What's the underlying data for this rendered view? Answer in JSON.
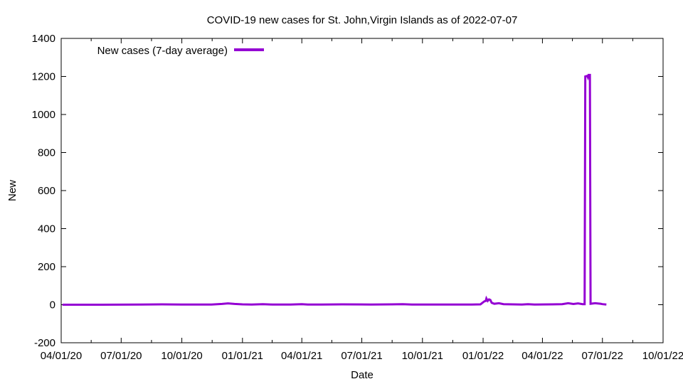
{
  "chart_data": {
    "type": "line",
    "title": "COVID-19 new cases for St. John,Virgin Islands as of 2022-07-07",
    "xlabel": "Date",
    "ylabel": "New",
    "xlim": [
      "2020-04-01",
      "2022-10-01"
    ],
    "ylim": [
      -200,
      1400
    ],
    "y_ticks": [
      -200,
      0,
      200,
      400,
      600,
      800,
      1000,
      1200,
      1400
    ],
    "x_ticks": [
      {
        "date": "2020-04-01",
        "label": "04/01/20"
      },
      {
        "date": "2020-07-01",
        "label": "07/01/20"
      },
      {
        "date": "2020-10-01",
        "label": "10/01/20"
      },
      {
        "date": "2021-01-01",
        "label": "01/01/21"
      },
      {
        "date": "2021-04-01",
        "label": "04/01/21"
      },
      {
        "date": "2021-07-01",
        "label": "07/01/21"
      },
      {
        "date": "2021-10-01",
        "label": "10/01/21"
      },
      {
        "date": "2022-01-01",
        "label": "01/01/22"
      },
      {
        "date": "2022-04-01",
        "label": "04/01/22"
      },
      {
        "date": "2022-07-01",
        "label": "07/01/22"
      },
      {
        "date": "2022-10-01",
        "label": "10/01/22"
      }
    ],
    "grid": false,
    "legend_position": "top-left",
    "series": [
      {
        "name": "New cases (7-day average)",
        "color": "#9400d3",
        "points": [
          [
            "2020-04-03",
            0
          ],
          [
            "2020-06-01",
            0
          ],
          [
            "2020-08-01",
            1
          ],
          [
            "2020-09-01",
            2
          ],
          [
            "2020-10-01",
            1
          ],
          [
            "2020-11-15",
            1
          ],
          [
            "2020-12-01",
            4
          ],
          [
            "2020-12-10",
            7
          ],
          [
            "2020-12-20",
            4
          ],
          [
            "2021-01-01",
            2
          ],
          [
            "2021-01-15",
            1
          ],
          [
            "2021-02-01",
            3
          ],
          [
            "2021-02-15",
            1
          ],
          [
            "2021-03-15",
            1
          ],
          [
            "2021-04-01",
            3
          ],
          [
            "2021-04-10",
            1
          ],
          [
            "2021-05-01",
            1
          ],
          [
            "2021-06-01",
            2
          ],
          [
            "2021-07-15",
            1
          ],
          [
            "2021-08-15",
            2
          ],
          [
            "2021-09-01",
            3
          ],
          [
            "2021-09-15",
            1
          ],
          [
            "2021-10-15",
            1
          ],
          [
            "2021-12-15",
            1
          ],
          [
            "2021-12-28",
            2
          ],
          [
            "2021-12-31",
            10
          ],
          [
            "2022-01-03",
            18
          ],
          [
            "2022-01-05",
            20
          ],
          [
            "2022-01-06",
            33
          ],
          [
            "2022-01-08",
            20
          ],
          [
            "2022-01-10",
            28
          ],
          [
            "2022-01-12",
            25
          ],
          [
            "2022-01-14",
            10
          ],
          [
            "2022-01-18",
            5
          ],
          [
            "2022-01-25",
            8
          ],
          [
            "2022-02-01",
            3
          ],
          [
            "2022-02-15",
            2
          ],
          [
            "2022-03-01",
            1
          ],
          [
            "2022-03-10",
            3
          ],
          [
            "2022-03-20",
            1
          ],
          [
            "2022-04-15",
            2
          ],
          [
            "2022-05-01",
            3
          ],
          [
            "2022-05-10",
            8
          ],
          [
            "2022-05-18",
            4
          ],
          [
            "2022-05-25",
            7
          ],
          [
            "2022-06-01",
            3
          ],
          [
            "2022-06-04",
            3
          ],
          [
            "2022-06-05",
            1200
          ],
          [
            "2022-06-08",
            1203
          ],
          [
            "2022-06-09",
            1195
          ],
          [
            "2022-06-10",
            1208
          ],
          [
            "2022-06-12",
            1208
          ],
          [
            "2022-06-13",
            5
          ],
          [
            "2022-06-20",
            8
          ],
          [
            "2022-06-28",
            5
          ],
          [
            "2022-07-01",
            3
          ],
          [
            "2022-07-07",
            1
          ]
        ]
      }
    ]
  }
}
